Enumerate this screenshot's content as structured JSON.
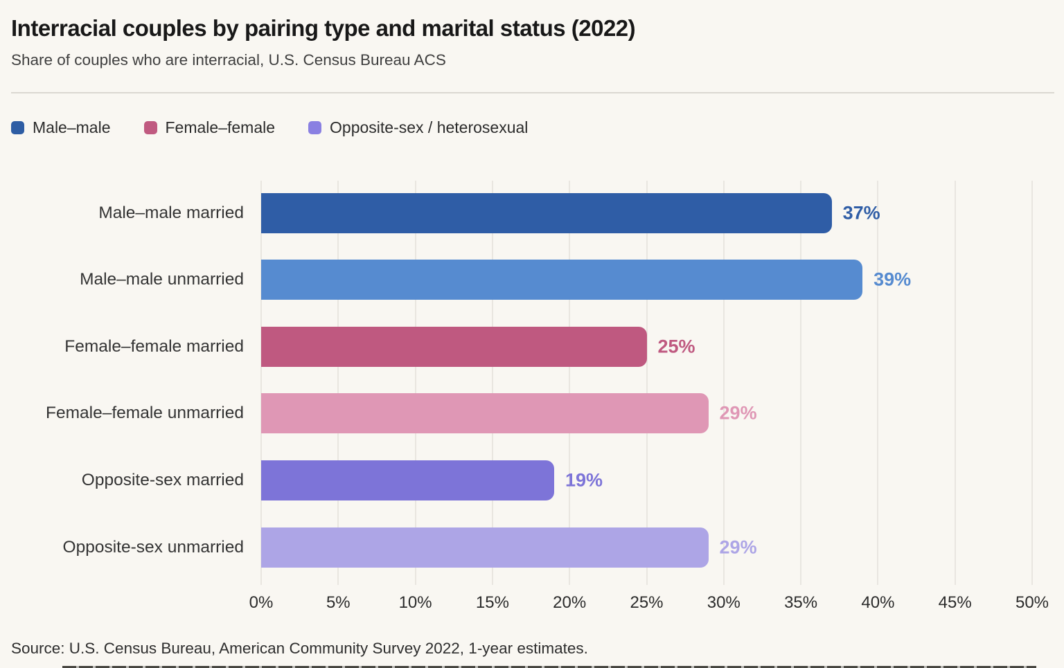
{
  "header": {
    "title": "Interracial couples by pairing type and marital status (2022)",
    "subtitle": "Share of couples who are interracial, U.S. Census Bureau ACS"
  },
  "legend": [
    {
      "label": "Male–male",
      "color": "#2e5da4"
    },
    {
      "label": "Female–female",
      "color": "#c05a80"
    },
    {
      "label": "Opposite-sex / heterosexual",
      "color": "#8a80e2"
    }
  ],
  "chart_data": {
    "type": "bar",
    "orientation": "horizontal",
    "title": "Interracial couples by pairing type and marital status (2022)",
    "xlabel": "",
    "ylabel": "",
    "xlim": [
      0,
      50
    ],
    "grid": true,
    "legend_position": "top",
    "categories": [
      "Male–male married",
      "Male–male unmarried",
      "Female–female married",
      "Female–female unmarried",
      "Opposite-sex married",
      "Opposite-sex unmarried"
    ],
    "values": [
      37,
      39,
      25,
      29,
      19,
      29
    ],
    "value_labels": [
      "37%",
      "39%",
      "25%",
      "29%",
      "19%",
      "29%"
    ],
    "bar_colors": [
      "#2f5da6",
      "#568bd0",
      "#bf5980",
      "#df97b5",
      "#7d74d8",
      "#ada5e6"
    ],
    "x_ticks": [
      "0%",
      "5%",
      "10%",
      "15%",
      "20%",
      "25%",
      "30%",
      "35%",
      "40%",
      "45%",
      "50%"
    ]
  },
  "footer": {
    "source": "Source: U.S. Census Bureau, American Community Survey 2022, 1-year estimates."
  }
}
